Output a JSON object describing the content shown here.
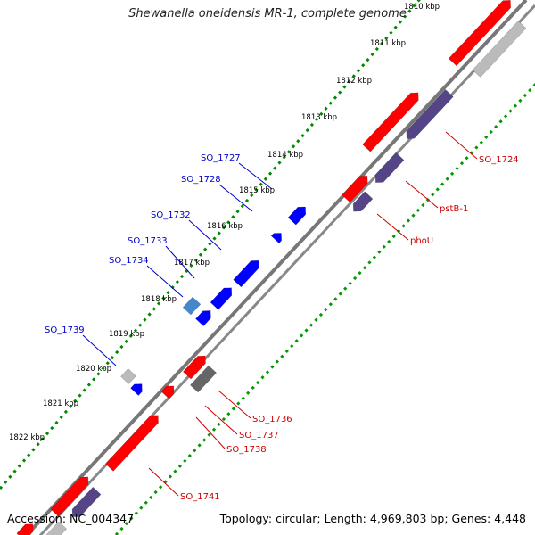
{
  "title": "Shewanella oneidensis MR-1, complete genome",
  "accession": "Accession: NC_004347",
  "topology": "Topology: circular; Length: 4,969,803 bp; Genes: 4,448",
  "colors": {
    "backbone": "#808080",
    "forward": "#ff0000",
    "reverse_blue": "#0000ff",
    "reverse_cds": "#554488",
    "gray": "#bbbbbb",
    "dark_gray": "#666666",
    "teal": "#4488cc",
    "tick_inner": "#008800",
    "tick_outer": "#009900",
    "label_blue": "#0000cc",
    "label_red": "#cc0000"
  },
  "kbp_labels": [
    "1810 kbp",
    "1811 kbp",
    "1812 kbp",
    "1813 kbp",
    "1814 kbp",
    "1815 kbp",
    "1816 kbp",
    "1817 kbp",
    "1818 kbp",
    "1819 kbp",
    "1820 kbp",
    "1821 kbp",
    "1822 kbp"
  ],
  "gene_labels_left": [
    "SO_1727",
    "SO_1728",
    "SO_1732",
    "SO_1733",
    "SO_1734",
    "SO_1739"
  ],
  "gene_labels_right": [
    "SO_1724",
    "pstB-1",
    "phoU",
    "SO_1736",
    "SO_1737",
    "SO_1738",
    "SO_1741"
  ]
}
